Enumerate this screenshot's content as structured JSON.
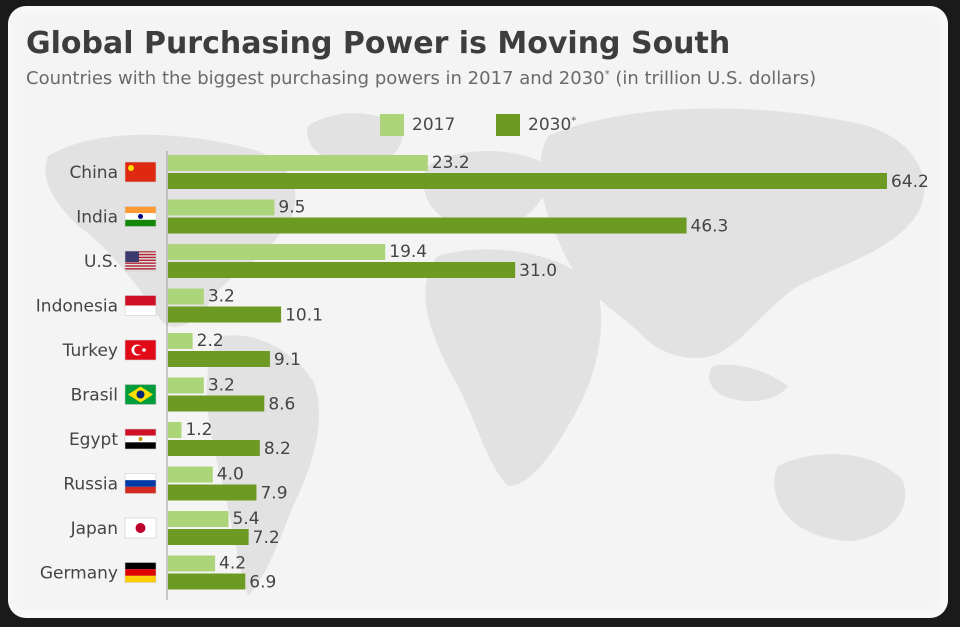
{
  "title": "Global Purchasing Power is Moving South",
  "subtitle_main": "Countries with the biggest purchasing powers in 2017 and 2030",
  "subtitle_mark": "*",
  "subtitle_tail": " (in trillion U.S. dollars)",
  "colors": {
    "series_2017": "#acd57a",
    "series_2030": "#6c9a23",
    "label": "#444444"
  },
  "chart_data": {
    "type": "bar",
    "orientation": "horizontal",
    "title": "Global Purchasing Power is Moving South",
    "subtitle": "Countries with the biggest purchasing powers in 2017 and 2030* (in trillion U.S. dollars)",
    "categories": [
      "China",
      "India",
      "U.S.",
      "Indonesia",
      "Turkey",
      "Brasil",
      "Egypt",
      "Russia",
      "Japan",
      "Germany"
    ],
    "category_flags": [
      "flag-china-icon",
      "flag-india-icon",
      "flag-us-icon",
      "flag-indonesia-icon",
      "flag-turkey-icon",
      "flag-brazil-icon",
      "flag-egypt-icon",
      "flag-russia-icon",
      "flag-japan-icon",
      "flag-germany-icon"
    ],
    "series": [
      {
        "name": "2017",
        "mark": "",
        "values": [
          23.2,
          9.5,
          19.4,
          3.2,
          2.2,
          3.2,
          1.2,
          4.0,
          5.4,
          4.2
        ],
        "labels": [
          "23.2",
          "9.5",
          "19.4",
          "3.2",
          "2.2",
          "3.2",
          "1.2",
          "4.0",
          "5.4",
          "4.2"
        ]
      },
      {
        "name": "2030",
        "mark": "*",
        "values": [
          64.2,
          46.3,
          31.0,
          10.1,
          9.1,
          8.6,
          8.2,
          7.9,
          7.2,
          6.9
        ],
        "labels": [
          "64.2",
          "46.3",
          "31.0",
          "10.1",
          "9.1",
          "8.6",
          "8.2",
          "7.9",
          "7.2",
          "6.9"
        ]
      }
    ],
    "xlim": [
      0,
      64.2
    ],
    "grid": false,
    "legend_position": "top-center",
    "background": "world-map"
  }
}
